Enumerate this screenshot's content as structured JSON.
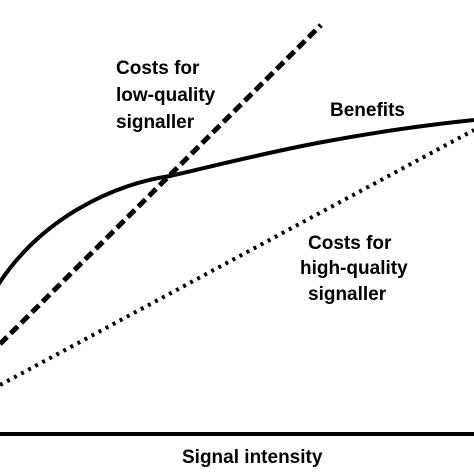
{
  "diagram": {
    "axis_label": "Signal intensity",
    "curves": {
      "benefits": {
        "label": "Benefits",
        "style": "solid"
      },
      "low_quality_costs": {
        "label_lines": [
          "Costs for",
          "low-quality",
          "signaller"
        ],
        "style": "dashed"
      },
      "high_quality_costs": {
        "label_lines": [
          "Costs for",
          "high-quality",
          "signaller"
        ],
        "style": "dotted"
      }
    },
    "colors": {
      "line": "#000000",
      "background": "#ffffff"
    }
  }
}
